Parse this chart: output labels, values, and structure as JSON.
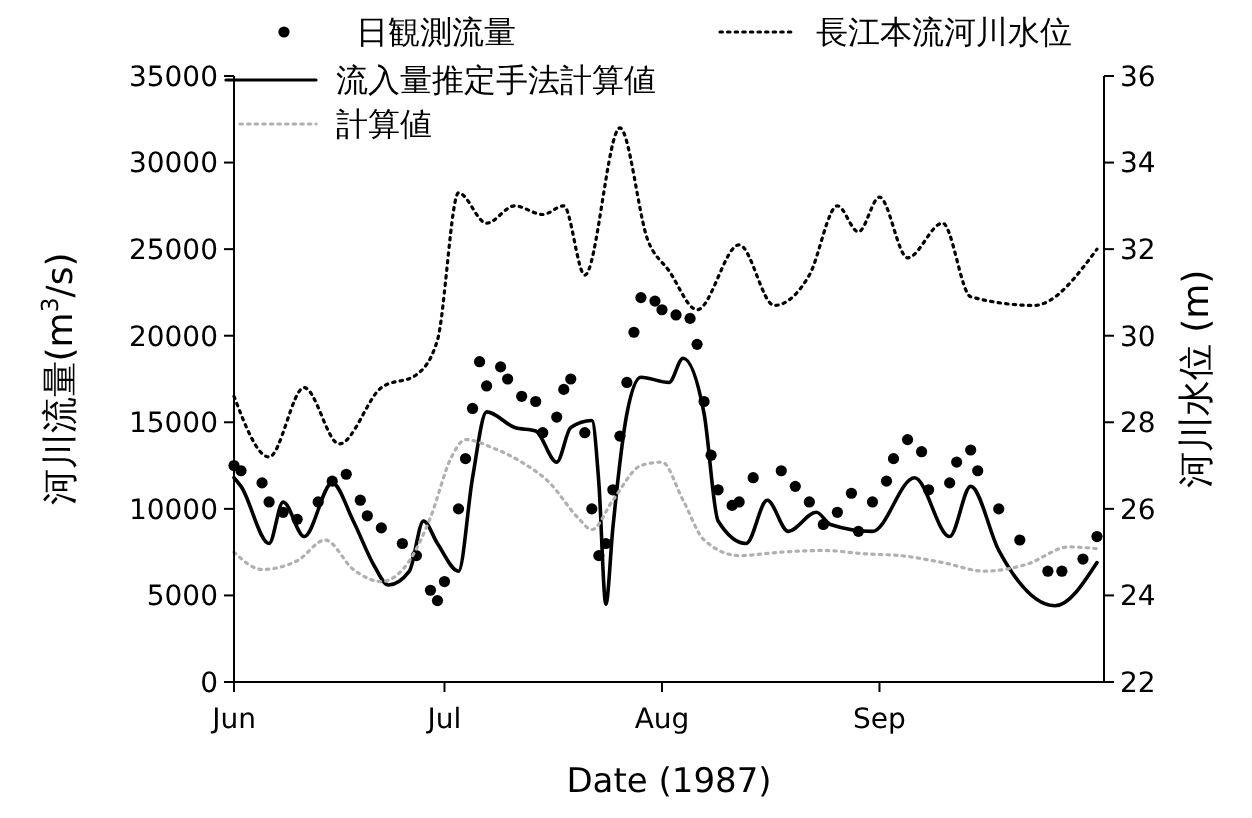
{
  "chart_data": {
    "type": "line",
    "xlabel": "Date (1987)",
    "ylabel": "河川流量(m$^{3}$/s)",
    "y2label": "河川水位 (m)",
    "xlim": [
      "1987-06-01",
      "1987-10-03"
    ],
    "xticks": [
      {
        "value": "1987-06-01",
        "label": "Jun"
      },
      {
        "value": "1987-07-01",
        "label": "Jul"
      },
      {
        "value": "1987-08-01",
        "label": "Aug"
      },
      {
        "value": "1987-09-01",
        "label": "Sep"
      }
    ],
    "ylim": [
      0,
      35000
    ],
    "yticks": [
      0,
      5000,
      10000,
      15000,
      20000,
      25000,
      30000,
      35000
    ],
    "y2lim": [
      22,
      36
    ],
    "y2ticks": [
      22,
      24,
      26,
      28,
      30,
      32,
      34,
      36
    ],
    "legend": "top",
    "grid": false,
    "series": [
      {
        "name": "日観測流量",
        "type": "scatter",
        "marker": "circle",
        "color": "#000000",
        "x": [
          "1987-06-01",
          "1987-06-02",
          "1987-06-05",
          "1987-06-06",
          "1987-06-08",
          "1987-06-10",
          "1987-06-13",
          "1987-06-15",
          "1987-06-17",
          "1987-06-19",
          "1987-06-20",
          "1987-06-22",
          "1987-06-25",
          "1987-06-27",
          "1987-06-29",
          "1987-06-30",
          "1987-07-01",
          "1987-07-03",
          "1987-07-04",
          "1987-07-05",
          "1987-07-06",
          "1987-07-07",
          "1987-07-09",
          "1987-07-10",
          "1987-07-12",
          "1987-07-14",
          "1987-07-15",
          "1987-07-17",
          "1987-07-18",
          "1987-07-19",
          "1987-07-21",
          "1987-07-22",
          "1987-07-23",
          "1987-07-24",
          "1987-07-25",
          "1987-07-26",
          "1987-07-27",
          "1987-07-28",
          "1987-07-29",
          "1987-07-31",
          "1987-08-01",
          "1987-08-03",
          "1987-08-05",
          "1987-08-06",
          "1987-08-07",
          "1987-08-08",
          "1987-08-09",
          "1987-08-11",
          "1987-08-12",
          "1987-08-14",
          "1987-08-18",
          "1987-08-20",
          "1987-08-22",
          "1987-08-24",
          "1987-08-26",
          "1987-08-28",
          "1987-08-29",
          "1987-08-31",
          "1987-09-02",
          "1987-09-03",
          "1987-09-05",
          "1987-09-07",
          "1987-09-08",
          "1987-09-11",
          "1987-09-12",
          "1987-09-14",
          "1987-09-15",
          "1987-09-18",
          "1987-09-21",
          "1987-09-25",
          "1987-09-27",
          "1987-09-30",
          "1987-10-02"
        ],
        "values": [
          12500,
          12200,
          11500,
          10400,
          9800,
          9400,
          10400,
          11600,
          12000,
          10500,
          9600,
          8900,
          8000,
          7300,
          5300,
          4700,
          5800,
          10000,
          12900,
          15800,
          18500,
          17100,
          18200,
          17500,
          16500,
          16200,
          14400,
          15300,
          16900,
          17500,
          14400,
          10000,
          7300,
          8000,
          11100,
          14200,
          17300,
          20200,
          22200,
          22000,
          21500,
          21200,
          21000,
          19500,
          16200,
          13100,
          11100,
          10200,
          10400,
          11800,
          12200,
          11300,
          10400,
          9100,
          9800,
          10900,
          8700,
          10400,
          11600,
          12900,
          14000,
          13300,
          11100,
          11500,
          12700,
          13400,
          12200,
          10000,
          8200,
          6400,
          6400,
          7100,
          8400
        ]
      },
      {
        "name": "長江本流河川水位",
        "axis": "y2",
        "line_style": "dotted",
        "color": "#000000",
        "x": [
          "1987-06-01",
          "1987-06-06",
          "1987-06-11",
          "1987-06-16",
          "1987-06-22",
          "1987-06-27",
          "1987-06-30",
          "1987-07-03",
          "1987-07-07",
          "1987-07-11",
          "1987-07-15",
          "1987-07-18",
          "1987-07-21",
          "1987-07-26",
          "1987-07-30",
          "1987-08-02",
          "1987-08-06",
          "1987-08-12",
          "1987-08-17",
          "1987-08-22",
          "1987-08-26",
          "1987-08-29",
          "1987-09-01",
          "1987-09-05",
          "1987-09-10",
          "1987-09-14",
          "1987-09-23",
          "1987-10-02"
        ],
        "values": [
          28.6,
          27.2,
          28.8,
          27.5,
          28.8,
          29.1,
          29.9,
          33.3,
          32.6,
          33.0,
          32.8,
          33.0,
          31.4,
          34.8,
          32.2,
          31.5,
          30.6,
          32.1,
          30.7,
          31.4,
          33.0,
          32.4,
          33.2,
          31.8,
          32.6,
          30.9,
          30.7,
          32.0
        ]
      },
      {
        "name": "流入量推定手法計算値",
        "line_style": "solid",
        "color": "#000000",
        "x": [
          "1987-06-01",
          "1987-06-02",
          "1987-06-06",
          "1987-06-08",
          "1987-06-11",
          "1987-06-15",
          "1987-06-18",
          "1987-06-21",
          "1987-06-23",
          "1987-06-26",
          "1987-06-28",
          "1987-06-30",
          "1987-07-03",
          "1987-07-05",
          "1987-07-07",
          "1987-07-11",
          "1987-07-14",
          "1987-07-17",
          "1987-07-19",
          "1987-07-22",
          "1987-07-23",
          "1987-07-24",
          "1987-07-25",
          "1987-07-27",
          "1987-07-29",
          "1987-08-02",
          "1987-08-04",
          "1987-08-07",
          "1987-08-09",
          "1987-08-13",
          "1987-08-16",
          "1987-08-19",
          "1987-08-23",
          "1987-08-25",
          "1987-08-31",
          "1987-09-06",
          "1987-09-11",
          "1987-09-14",
          "1987-09-18",
          "1987-09-26",
          "1987-10-02"
        ],
        "values": [
          11800,
          11300,
          8000,
          10400,
          8400,
          11500,
          9300,
          6700,
          5600,
          6400,
          9300,
          8000,
          6400,
          11800,
          15600,
          14700,
          14500,
          12700,
          14700,
          15100,
          11500,
          4500,
          8900,
          15500,
          17600,
          17300,
          18700,
          15500,
          9300,
          8000,
          10500,
          8700,
          9800,
          9100,
          8700,
          11800,
          8400,
          11300,
          7600,
          4400,
          6900
        ]
      },
      {
        "name": "計算値",
        "line_style": "dotted",
        "color": "#b0b0b0",
        "x": [
          "1987-06-01",
          "1987-06-05",
          "1987-06-10",
          "1987-06-14",
          "1987-06-18",
          "1987-06-22",
          "1987-06-26",
          "1987-06-29",
          "1987-07-02",
          "1987-07-04",
          "1987-07-08",
          "1987-07-12",
          "1987-07-16",
          "1987-07-20",
          "1987-07-22",
          "1987-07-25",
          "1987-07-29",
          "1987-08-01",
          "1987-08-04",
          "1987-08-07",
          "1987-08-12",
          "1987-08-18",
          "1987-08-24",
          "1987-08-30",
          "1987-09-04",
          "1987-09-10",
          "1987-09-16",
          "1987-09-22",
          "1987-09-28",
          "1987-10-02"
        ],
        "values": [
          7500,
          6500,
          7000,
          8200,
          6500,
          5800,
          7000,
          9500,
          13000,
          14000,
          13500,
          12700,
          11500,
          9500,
          8800,
          10500,
          12500,
          12700,
          10500,
          8200,
          7300,
          7500,
          7600,
          7400,
          7300,
          6900,
          6400,
          6800,
          7800,
          7700
        ]
      }
    ]
  }
}
